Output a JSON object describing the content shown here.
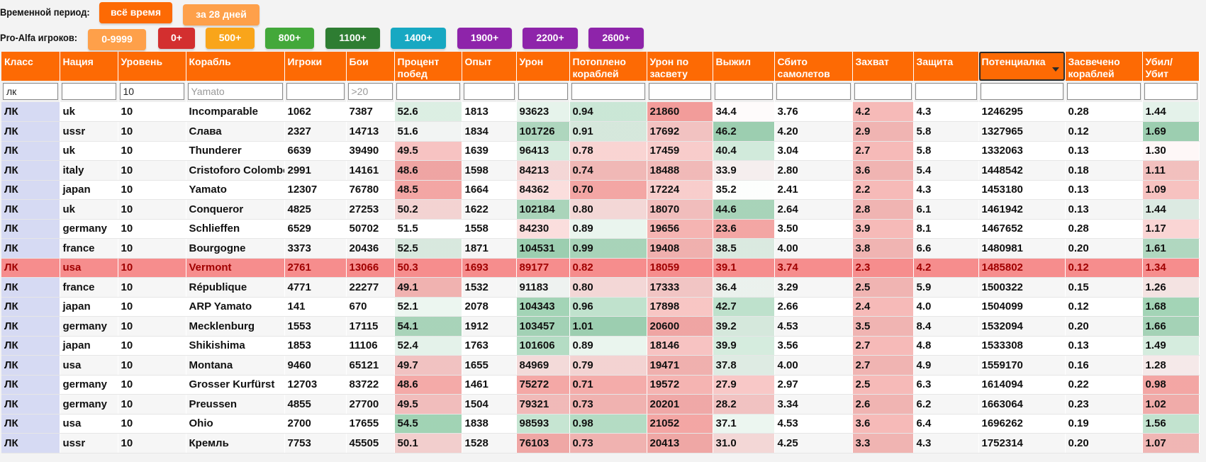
{
  "period_filter": {
    "label": "Временной период:",
    "buttons": [
      {
        "label": "всё время",
        "color": "#fd6a04"
      },
      {
        "label": "за 28 дней",
        "color": "#fea04a"
      }
    ]
  },
  "players_filter": {
    "label": "Pro-Alfa игроков:",
    "buttons": [
      {
        "label": "0-9999",
        "color": "#fea04a"
      },
      {
        "label": "0+",
        "color": "#d32f2f"
      },
      {
        "label": "500+",
        "color": "#f9a51a"
      },
      {
        "label": "800+",
        "color": "#43a83a"
      },
      {
        "label": "1100+",
        "color": "#2e7d32"
      },
      {
        "label": "1400+",
        "color": "#17a8c2"
      },
      {
        "label": "1900+",
        "color": "#8e24aa"
      },
      {
        "label": "2200+",
        "color": "#8e24aa"
      },
      {
        "label": "2600+",
        "color": "#8e24aa"
      }
    ]
  },
  "columns": [
    "Класс",
    "Нация",
    "Уровень",
    "Корабль",
    "Игроки",
    "Бои",
    "Процент побед",
    "Опыт",
    "Урон",
    "Потоплено кораблей",
    "Урон по засвету",
    "Выжил",
    "Сбито самолетов",
    "Захват",
    "Защита",
    "Потенциалка",
    "Засвечено кораблей",
    "Убил/ Убит"
  ],
  "sorted_column": "Потенциалка",
  "column_filters": {
    "class": "лк",
    "level": "10",
    "ship_placeholder": "Yamato",
    "battles_placeholder": ">20"
  },
  "rows": [
    [
      "ЛК",
      "uk",
      "10",
      "Incomparable",
      "1062",
      "7387",
      "52.6",
      "1813",
      "93623",
      "0.94",
      "21860",
      "34.4",
      "3.76",
      "4.2",
      "4.3",
      "1246295",
      "0.28",
      "1.44"
    ],
    [
      "ЛК",
      "ussr",
      "10",
      "Слава",
      "2327",
      "14713",
      "51.6",
      "1834",
      "101726",
      "0.91",
      "17692",
      "46.2",
      "4.20",
      "2.9",
      "5.8",
      "1327965",
      "0.12",
      "1.69"
    ],
    [
      "ЛК",
      "uk",
      "10",
      "Thunderer",
      "6639",
      "39490",
      "49.5",
      "1639",
      "96413",
      "0.78",
      "17459",
      "40.4",
      "3.04",
      "2.7",
      "5.8",
      "1332063",
      "0.13",
      "1.30"
    ],
    [
      "ЛК",
      "italy",
      "10",
      "Cristoforo Colombo",
      "2991",
      "14161",
      "48.6",
      "1598",
      "84213",
      "0.74",
      "18488",
      "33.9",
      "2.80",
      "3.6",
      "5.4",
      "1448542",
      "0.18",
      "1.11"
    ],
    [
      "ЛК",
      "japan",
      "10",
      "Yamato",
      "12307",
      "76780",
      "48.5",
      "1664",
      "84362",
      "0.70",
      "17224",
      "35.2",
      "2.41",
      "2.2",
      "4.3",
      "1453180",
      "0.13",
      "1.09"
    ],
    [
      "ЛК",
      "uk",
      "10",
      "Conqueror",
      "4825",
      "27253",
      "50.2",
      "1622",
      "102184",
      "0.80",
      "18070",
      "44.6",
      "2.64",
      "2.8",
      "6.1",
      "1461942",
      "0.13",
      "1.44"
    ],
    [
      "ЛК",
      "germany",
      "10",
      "Schlieffen",
      "6529",
      "50702",
      "51.5",
      "1558",
      "84230",
      "0.89",
      "19656",
      "23.6",
      "3.50",
      "3.9",
      "8.1",
      "1467652",
      "0.28",
      "1.17"
    ],
    [
      "ЛК",
      "france",
      "10",
      "Bourgogne",
      "3373",
      "20436",
      "52.5",
      "1871",
      "104531",
      "0.99",
      "19408",
      "38.5",
      "4.00",
      "3.8",
      "6.6",
      "1480981",
      "0.20",
      "1.61"
    ],
    [
      "ЛК",
      "usa",
      "10",
      "Vermont",
      "2761",
      "13066",
      "50.3",
      "1693",
      "89177",
      "0.82",
      "18059",
      "39.1",
      "3.74",
      "2.3",
      "4.2",
      "1485802",
      "0.12",
      "1.34"
    ],
    [
      "ЛК",
      "france",
      "10",
      "République",
      "4771",
      "22277",
      "49.1",
      "1532",
      "91183",
      "0.80",
      "17333",
      "36.4",
      "3.29",
      "2.5",
      "5.9",
      "1500322",
      "0.15",
      "1.26"
    ],
    [
      "ЛК",
      "japan",
      "10",
      "ARP Yamato",
      "141",
      "670",
      "52.1",
      "2078",
      "104343",
      "0.96",
      "17898",
      "42.7",
      "2.66",
      "2.4",
      "4.0",
      "1504099",
      "0.12",
      "1.68"
    ],
    [
      "ЛК",
      "germany",
      "10",
      "Mecklenburg",
      "1553",
      "17115",
      "54.1",
      "1912",
      "103457",
      "1.01",
      "20600",
      "39.2",
      "4.53",
      "3.5",
      "8.4",
      "1532094",
      "0.20",
      "1.66"
    ],
    [
      "ЛК",
      "japan",
      "10",
      "Shikishima",
      "1853",
      "11106",
      "52.4",
      "1763",
      "101606",
      "0.89",
      "18146",
      "39.9",
      "3.56",
      "2.7",
      "4.8",
      "1533308",
      "0.13",
      "1.49"
    ],
    [
      "ЛК",
      "usa",
      "10",
      "Montana",
      "9460",
      "65121",
      "49.7",
      "1655",
      "84969",
      "0.79",
      "19471",
      "37.8",
      "4.00",
      "2.7",
      "4.9",
      "1559170",
      "0.16",
      "1.28"
    ],
    [
      "ЛК",
      "germany",
      "10",
      "Grosser Kurfürst",
      "12703",
      "83722",
      "48.6",
      "1461",
      "75272",
      "0.71",
      "19572",
      "27.9",
      "2.97",
      "2.5",
      "6.3",
      "1614094",
      "0.22",
      "0.98"
    ],
    [
      "ЛК",
      "germany",
      "10",
      "Preussen",
      "4855",
      "27700",
      "49.5",
      "1504",
      "79321",
      "0.73",
      "20201",
      "28.2",
      "3.34",
      "2.6",
      "6.2",
      "1663064",
      "0.23",
      "1.02"
    ],
    [
      "ЛК",
      "usa",
      "10",
      "Ohio",
      "2700",
      "17655",
      "54.5",
      "1838",
      "98593",
      "0.98",
      "21052",
      "37.1",
      "4.53",
      "3.6",
      "6.4",
      "1696262",
      "0.19",
      "1.56"
    ],
    [
      "ЛК",
      "ussr",
      "10",
      "Кремль",
      "7753",
      "45505",
      "50.1",
      "1528",
      "76103",
      "0.73",
      "20413",
      "31.0",
      "4.25",
      "3.3",
      "4.3",
      "1752314",
      "0.20",
      "1.07"
    ]
  ],
  "highlighted_row": "Vermont",
  "colors": {
    "header": "#fd6a04",
    "class_cell": "#d6daf3",
    "highlight_row": "#f68d8d",
    "good": "#2e9e5a",
    "bad": "#e53935"
  }
}
